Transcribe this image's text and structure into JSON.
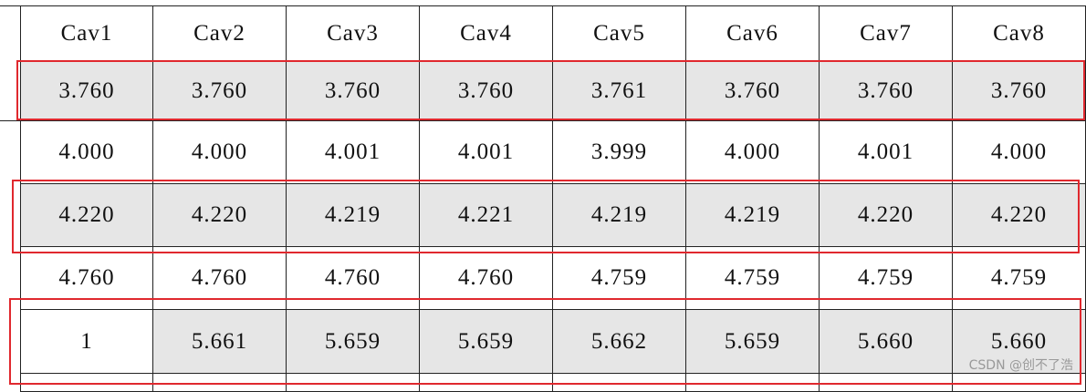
{
  "table": {
    "header": [
      "Cav1",
      "Cav2",
      "Cav3",
      "Cav4",
      "Cav5",
      "Cav6",
      "Cav7",
      "Cav8"
    ],
    "rows": [
      [
        "3.760",
        "3.760",
        "3.760",
        "3.760",
        "3.761",
        "3.760",
        "3.760",
        "3.760"
      ],
      [
        "4.000",
        "4.000",
        "4.001",
        "4.001",
        "3.999",
        "4.000",
        "4.001",
        "4.000"
      ],
      [
        "4.220",
        "4.220",
        "4.219",
        "4.221",
        "4.219",
        "4.219",
        "4.220",
        "4.220"
      ],
      [
        "4.760",
        "4.760",
        "4.760",
        "4.760",
        "4.759",
        "4.759",
        "4.759",
        "4.759"
      ],
      [
        "1",
        "5.661",
        "5.659",
        "5.659",
        "5.662",
        "5.659",
        "5.660",
        "5.660"
      ]
    ]
  },
  "watermark": "CSDN @创不了浩"
}
